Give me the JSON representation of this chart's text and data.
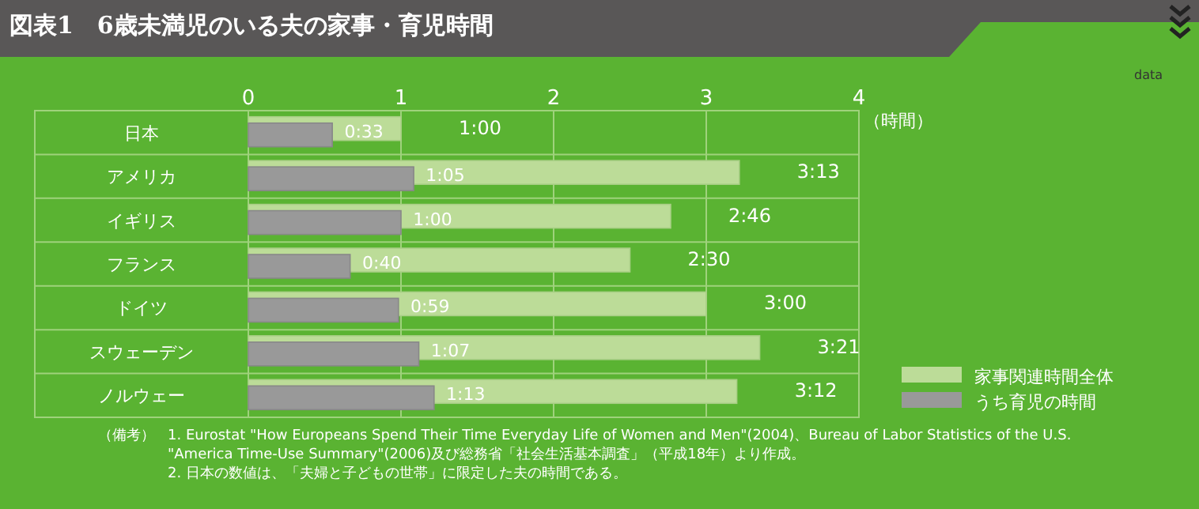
{
  "chart_data": {
    "type": "bar",
    "orientation": "horizontal",
    "title": "図表1　6歳未満児のいる夫の家事・育児時間",
    "xlabel": "（時間）",
    "categories": [
      "日本",
      "アメリカ",
      "イギリス",
      "フランス",
      "ドイツ",
      "スウェーデン",
      "ノルウェー"
    ],
    "series": [
      {
        "name": "家事関連時間全体",
        "color": "#bcdc98",
        "values": [
          1.0,
          3.2167,
          2.7667,
          2.5,
          3.0,
          3.35,
          3.2
        ],
        "value_labels": [
          "1:00",
          "3:13",
          "2:46",
          "2:30",
          "3:00",
          "3:21",
          "3:12"
        ]
      },
      {
        "name": "うち育児の時間",
        "color": "#999999",
        "values": [
          0.55,
          1.0833,
          1.0,
          0.6667,
          0.9833,
          1.1167,
          1.2167
        ],
        "value_labels": [
          "0:33",
          "1:05",
          "1:00",
          "0:40",
          "0:59",
          "1:07",
          "1:13"
        ]
      }
    ],
    "xlim": [
      0,
      4
    ],
    "xticks": [
      0,
      1,
      2,
      3,
      4
    ],
    "grid": true,
    "legend": "bottom right",
    "annotations": [
      "data",
      "（備考）",
      "1. Eurostat \"How Europeans Spend Their Time Everyday Life of Women and Men\"(2004)、Bureau of Labor Statistics of the U.S. \"America Time-Use Summary\"(2006)及び総務省「社会生活基本調査」（平成18年）より作成。",
      "2. 日本の数値は、「夫婦と子どもの世帯」に限定した夫の時間である。"
    ]
  }
}
